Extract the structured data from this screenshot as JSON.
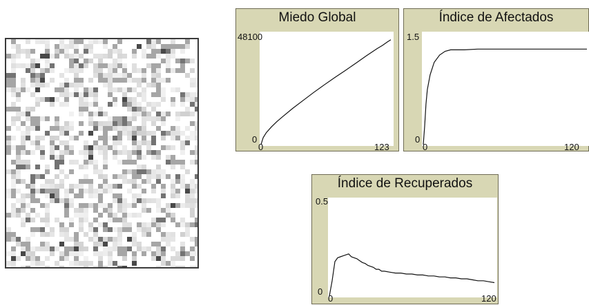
{
  "world_view": {
    "icon": "patch-grid-view"
  },
  "plots": [
    {
      "id": "miedo-global",
      "title": "Miedo Global",
      "y_max_label": "48100",
      "y_min_label": "0",
      "x_min_label": "0",
      "x_max_label": "123",
      "chart_data": {
        "type": "line",
        "title": "Miedo Global",
        "xlabel": "",
        "ylabel": "",
        "xlim": [
          0,
          123
        ],
        "ylim": [
          0,
          48100
        ],
        "x": [
          0,
          2,
          5,
          10,
          15,
          20,
          30,
          40,
          50,
          60,
          70,
          80,
          90,
          100,
          110,
          115,
          120,
          123
        ],
        "values": [
          0,
          3000,
          5200,
          7800,
          10000,
          12000,
          15800,
          19300,
          22800,
          26100,
          29300,
          32400,
          35600,
          38800,
          41900,
          43300,
          44900,
          45800
        ]
      }
    },
    {
      "id": "indice-afectados",
      "title": "Índice de Afectados",
      "y_max_label": "1.5",
      "y_min_label": "0",
      "x_min_label": "0",
      "x_max_label": "120",
      "chart_data": {
        "type": "line",
        "title": "Índice de Afectados",
        "xlabel": "",
        "ylabel": "",
        "xlim": [
          0,
          120
        ],
        "ylim": [
          0,
          1.5
        ],
        "x": [
          0,
          1,
          2,
          3,
          5,
          8,
          12,
          16,
          20,
          25,
          30,
          40,
          50,
          60,
          80,
          100,
          120
        ],
        "values": [
          0,
          0.25,
          0.55,
          0.75,
          0.95,
          1.12,
          1.22,
          1.27,
          1.29,
          1.29,
          1.29,
          1.3,
          1.3,
          1.3,
          1.3,
          1.3,
          1.3
        ]
      }
    },
    {
      "id": "indice-recuperados",
      "title": "Índice de Recuperados",
      "y_max_label": "0.5",
      "y_min_label": "0",
      "x_min_label": "0",
      "x_max_label": "120",
      "chart_data": {
        "type": "line",
        "title": "Índice de Recuperados",
        "xlabel": "",
        "ylabel": "",
        "xlim": [
          0,
          120
        ],
        "ylim": [
          0,
          0.5
        ],
        "x": [
          0,
          2,
          4,
          6,
          8,
          10,
          12,
          14,
          16,
          18,
          20,
          22,
          24,
          26,
          28,
          30,
          32,
          34,
          36,
          38,
          40,
          44,
          48,
          52,
          56,
          60,
          64,
          68,
          72,
          76,
          80,
          84,
          88,
          92,
          96,
          100,
          104,
          108,
          112,
          116,
          120
        ],
        "values": [
          0,
          0.08,
          0.18,
          0.2,
          0.205,
          0.21,
          0.215,
          0.22,
          0.205,
          0.2,
          0.195,
          0.185,
          0.175,
          0.17,
          0.16,
          0.155,
          0.15,
          0.14,
          0.14,
          0.13,
          0.13,
          0.125,
          0.12,
          0.12,
          0.115,
          0.115,
          0.11,
          0.11,
          0.105,
          0.105,
          0.1,
          0.1,
          0.095,
          0.095,
          0.09,
          0.09,
          0.085,
          0.08,
          0.08,
          0.075,
          0.07
        ]
      }
    }
  ]
}
